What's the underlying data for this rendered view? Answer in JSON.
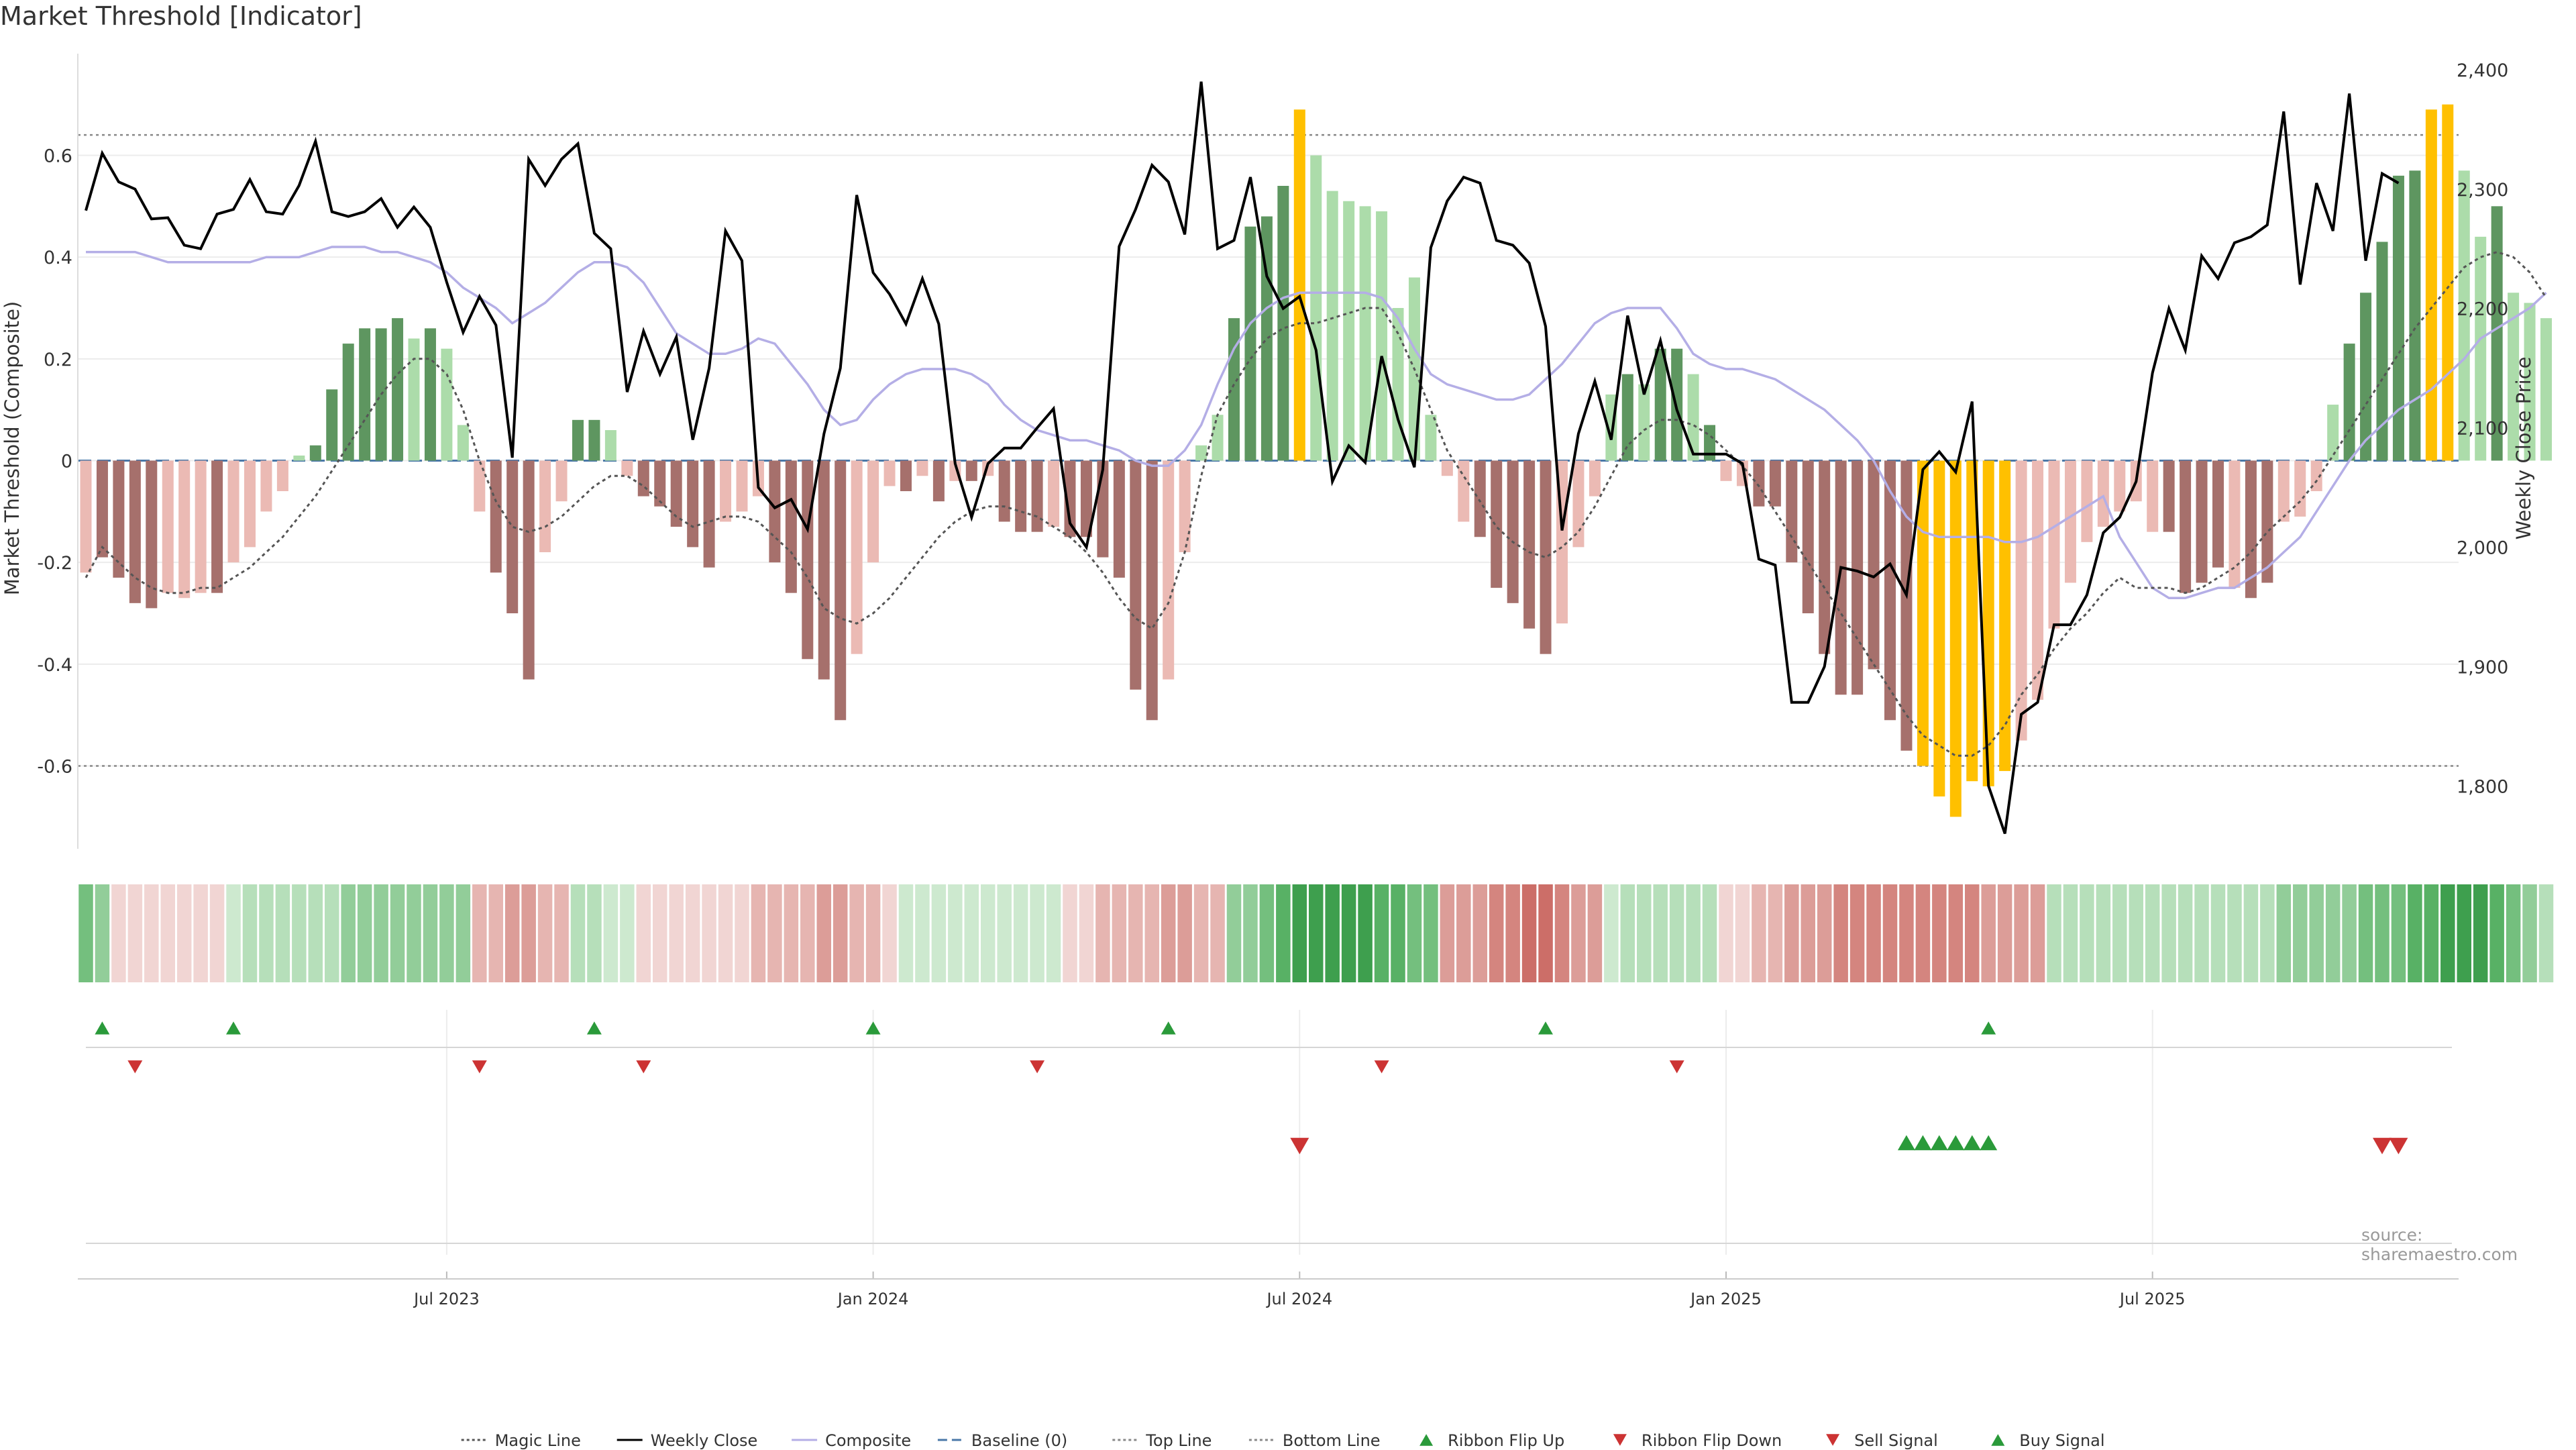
{
  "title": "Market Threshold [Indicator]",
  "source": "source: sharemaestro.com",
  "colors": {
    "magic": "#555555",
    "close": "#000000",
    "composite": "#b4aee6",
    "baseline": "#4a78a8",
    "bear_dark": "#a6706c",
    "bear_light": "#ebbab4",
    "bull_dark": "#5e9660",
    "bull_light": "#acdcaa",
    "extreme": "#ffc000",
    "flip_up": "#2a9a3a",
    "flip_down": "#cc3333"
  },
  "chart_data": {
    "type": "bar",
    "ylabel_left": "Market Threshold (Composite)",
    "ylabel_right": "Weekly Close Price",
    "y_left_ticks": [
      "0.6",
      "0.4",
      "0.2",
      "0",
      "-0.2",
      "-0.4",
      "-0.6"
    ],
    "y_left_range": [
      -0.78,
      0.78
    ],
    "y_right_ticks": [
      "2,400",
      "2,300",
      "2,200",
      "2,100",
      "2,000",
      "1,900",
      "1,800"
    ],
    "y_right_range": [
      1740,
      2405
    ],
    "top_line": 0.64,
    "bottom_line": -0.6,
    "x_ticks": [
      "Jul 2023",
      "Jan 2024",
      "Jul 2024",
      "Jan 2025",
      "Jul 2025"
    ],
    "x_tick_index": [
      22,
      48,
      74,
      100,
      126
    ],
    "bars": [
      -0.22,
      -0.19,
      -0.23,
      -0.28,
      -0.29,
      -0.26,
      -0.27,
      -0.26,
      -0.26,
      -0.2,
      -0.17,
      -0.1,
      -0.06,
      0.01,
      0.03,
      0.14,
      0.23,
      0.26,
      0.26,
      0.28,
      0.24,
      0.26,
      0.22,
      0.07,
      -0.1,
      -0.22,
      -0.3,
      -0.43,
      -0.18,
      -0.08,
      0.08,
      0.08,
      0.06,
      -0.03,
      -0.07,
      -0.09,
      -0.13,
      -0.17,
      -0.21,
      -0.12,
      -0.1,
      -0.07,
      -0.2,
      -0.26,
      -0.39,
      -0.43,
      -0.51,
      -0.38,
      -0.2,
      -0.05,
      -0.06,
      -0.03,
      -0.08,
      -0.04,
      -0.04,
      -0.03,
      -0.12,
      -0.14,
      -0.14,
      -0.13,
      -0.15,
      -0.15,
      -0.19,
      -0.23,
      -0.45,
      -0.51,
      -0.43,
      -0.18,
      0.03,
      0.09,
      0.28,
      0.46,
      0.48,
      0.54,
      0.69,
      0.6,
      0.53,
      0.51,
      0.5,
      0.49,
      0.3,
      0.36,
      0.09,
      -0.03,
      -0.12,
      -0.15,
      -0.25,
      -0.28,
      -0.33,
      -0.38,
      -0.32,
      -0.17,
      -0.07,
      0.13,
      0.17,
      0.15,
      0.22,
      0.22,
      0.17,
      0.07,
      -0.04,
      -0.05,
      -0.09,
      -0.09,
      -0.2,
      -0.3,
      -0.38,
      -0.46,
      -0.46,
      -0.41,
      -0.51,
      -0.57,
      -0.6,
      -0.66,
      -0.7,
      -0.63,
      -0.64,
      -0.61,
      -0.55,
      -0.47,
      -0.33,
      -0.24,
      -0.16,
      -0.13,
      -0.1,
      -0.08,
      -0.14,
      -0.14,
      -0.26,
      -0.24,
      -0.21,
      -0.25,
      -0.27,
      -0.24,
      -0.12,
      -0.11,
      -0.06,
      0.11,
      0.23,
      0.33,
      0.43,
      0.56,
      0.57,
      0.69,
      0.7,
      0.57,
      0.44,
      0.5,
      0.33,
      0.31,
      0.28
    ],
    "bar_class": [
      "bear_light",
      "bear_dark",
      "bear_dark",
      "bear_dark",
      "bear_dark",
      "bear_light",
      "bear_light",
      "bear_light",
      "bear_dark",
      "bear_light",
      "bear_light",
      "bear_light",
      "bear_light",
      "bull_light",
      "bull_dark",
      "bull_dark",
      "bull_dark",
      "bull_dark",
      "bull_dark",
      "bull_dark",
      "bull_light",
      "bull_dark",
      "bull_light",
      "bull_light",
      "bear_light",
      "bear_dark",
      "bear_dark",
      "bear_dark",
      "bear_light",
      "bear_light",
      "bull_dark",
      "bull_dark",
      "bull_light",
      "bear_light",
      "bear_dark",
      "bear_dark",
      "bear_dark",
      "bear_dark",
      "bear_dark",
      "bear_light",
      "bear_light",
      "bear_light",
      "bear_dark",
      "bear_dark",
      "bear_dark",
      "bear_dark",
      "bear_dark",
      "bear_light",
      "bear_light",
      "bear_light",
      "bear_dark",
      "bear_light",
      "bear_dark",
      "bear_light",
      "bear_dark",
      "bear_light",
      "bear_dark",
      "bear_dark",
      "bear_dark",
      "bear_light",
      "bear_dark",
      "bear_dark",
      "bear_dark",
      "bear_dark",
      "bear_dark",
      "bear_dark",
      "bear_light",
      "bear_light",
      "bull_light",
      "bull_light",
      "bull_dark",
      "bull_dark",
      "bull_dark",
      "bull_dark",
      "extreme",
      "bull_light",
      "bull_light",
      "bull_light",
      "bull_light",
      "bull_light",
      "bull_light",
      "bull_light",
      "bull_light",
      "bear_light",
      "bear_light",
      "bear_dark",
      "bear_dark",
      "bear_dark",
      "bear_dark",
      "bear_dark",
      "bear_light",
      "bear_light",
      "bear_light",
      "bull_light",
      "bull_dark",
      "bull_light",
      "bull_dark",
      "bull_dark",
      "bull_light",
      "bull_dark",
      "bear_light",
      "bear_light",
      "bear_dark",
      "bear_dark",
      "bear_dark",
      "bear_dark",
      "bear_dark",
      "bear_dark",
      "bear_dark",
      "bear_dark",
      "bear_dark",
      "bear_dark",
      "extreme",
      "extreme",
      "extreme",
      "extreme",
      "extreme",
      "extreme",
      "bear_light",
      "bear_light",
      "bear_light",
      "bear_light",
      "bear_light",
      "bear_light",
      "bear_light",
      "bear_light",
      "bear_light",
      "bear_dark",
      "bear_dark",
      "bear_dark",
      "bear_dark",
      "bear_light",
      "bear_dark",
      "bear_dark",
      "bear_light",
      "bear_light",
      "bear_light",
      "bull_light",
      "bull_dark",
      "bull_dark",
      "bull_dark",
      "bull_dark",
      "bull_dark",
      "extreme",
      "extreme",
      "bull_light",
      "bull_light",
      "bull_dark",
      "bull_light",
      "bull_light",
      "bull_light"
    ],
    "series": [
      {
        "name": "Weekly Close",
        "values": [
          2282,
          2330,
          2306,
          2300,
          2275,
          2276,
          2253,
          2250,
          2279,
          2283,
          2308,
          2281,
          2279,
          2303,
          2340,
          2281,
          2277,
          2281,
          2292,
          2268,
          2285,
          2268,
          2222,
          2180,
          2210,
          2186,
          2075,
          2325,
          2303,
          2325,
          2338,
          2263,
          2250,
          2130,
          2181,
          2145,
          2176,
          2090,
          2150,
          2265,
          2240,
          2050,
          2033,
          2040,
          2015,
          2095,
          2150,
          2295,
          2230,
          2212,
          2187,
          2225,
          2187,
          2070,
          2025,
          2070,
          2083,
          2083,
          2100,
          2116,
          2020,
          2000,
          2065,
          2252,
          2283,
          2320,
          2306,
          2262,
          2390,
          2250,
          2257,
          2310,
          2227,
          2200,
          2210,
          2165,
          2055,
          2085,
          2071,
          2160,
          2107,
          2067,
          2251,
          2290,
          2310,
          2305,
          2257,
          2253,
          2238,
          2185,
          2014,
          2095,
          2139,
          2090,
          2194,
          2128,
          2173,
          2115,
          2078,
          2078,
          2078,
          2070,
          1990,
          1985,
          1870,
          1870,
          1900,
          1983,
          1980,
          1975,
          1986,
          1960,
          2065,
          2080,
          2063,
          2122,
          1800,
          1760,
          1860,
          1870,
          1935,
          1935,
          1960,
          2012,
          2025,
          2055,
          2146,
          2200,
          2165,
          2244,
          2225,
          2255,
          2260,
          2270,
          2365,
          2220,
          2305,
          2265,
          2380,
          2240,
          2313,
          2305
        ]
      },
      {
        "name": "Composite",
        "values": [
          0.41,
          0.41,
          0.41,
          0.41,
          0.4,
          0.39,
          0.39,
          0.39,
          0.39,
          0.39,
          0.39,
          0.4,
          0.4,
          0.4,
          0.41,
          0.42,
          0.42,
          0.42,
          0.41,
          0.41,
          0.4,
          0.39,
          0.37,
          0.34,
          0.32,
          0.3,
          0.27,
          0.29,
          0.31,
          0.34,
          0.37,
          0.39,
          0.39,
          0.38,
          0.35,
          0.3,
          0.25,
          0.23,
          0.21,
          0.21,
          0.22,
          0.24,
          0.23,
          0.19,
          0.15,
          0.1,
          0.07,
          0.08,
          0.12,
          0.15,
          0.17,
          0.18,
          0.18,
          0.18,
          0.17,
          0.15,
          0.11,
          0.08,
          0.06,
          0.05,
          0.04,
          0.04,
          0.03,
          0.02,
          0.0,
          -0.01,
          -0.01,
          0.02,
          0.07,
          0.15,
          0.22,
          0.27,
          0.3,
          0.32,
          0.33,
          0.33,
          0.33,
          0.33,
          0.33,
          0.32,
          0.28,
          0.22,
          0.17,
          0.15,
          0.14,
          0.13,
          0.12,
          0.12,
          0.13,
          0.16,
          0.19,
          0.23,
          0.27,
          0.29,
          0.3,
          0.3,
          0.3,
          0.26,
          0.21,
          0.19,
          0.18,
          0.18,
          0.17,
          0.16,
          0.14,
          0.12,
          0.1,
          0.07,
          0.04,
          0.0,
          -0.06,
          -0.11,
          -0.14,
          -0.15,
          -0.15,
          -0.15,
          -0.15,
          -0.16,
          -0.16,
          -0.15,
          -0.13,
          -0.11,
          -0.09,
          -0.07,
          -0.15,
          -0.2,
          -0.25,
          -0.27,
          -0.27,
          -0.26,
          -0.25,
          -0.25,
          -0.23,
          -0.21,
          -0.18,
          -0.15,
          -0.1,
          -0.05,
          0.0,
          0.04,
          0.07,
          0.1,
          0.12,
          0.14,
          0.17,
          0.2,
          0.24,
          0.26,
          0.28,
          0.3,
          0.33
        ]
      },
      {
        "name": "Magic Line",
        "values": [
          -0.23,
          -0.17,
          -0.2,
          -0.23,
          -0.25,
          -0.26,
          -0.26,
          -0.25,
          -0.25,
          -0.23,
          -0.21,
          -0.18,
          -0.15,
          -0.11,
          -0.07,
          -0.02,
          0.03,
          0.08,
          0.13,
          0.17,
          0.2,
          0.2,
          0.17,
          0.1,
          0.0,
          -0.08,
          -0.13,
          -0.14,
          -0.13,
          -0.11,
          -0.08,
          -0.05,
          -0.03,
          -0.03,
          -0.05,
          -0.08,
          -0.11,
          -0.13,
          -0.12,
          -0.11,
          -0.11,
          -0.12,
          -0.15,
          -0.18,
          -0.23,
          -0.29,
          -0.31,
          -0.32,
          -0.3,
          -0.27,
          -0.23,
          -0.19,
          -0.15,
          -0.12,
          -0.1,
          -0.09,
          -0.09,
          -0.1,
          -0.11,
          -0.13,
          -0.15,
          -0.18,
          -0.22,
          -0.27,
          -0.31,
          -0.33,
          -0.28,
          -0.18,
          -0.03,
          0.09,
          0.15,
          0.2,
          0.24,
          0.26,
          0.27,
          0.27,
          0.28,
          0.29,
          0.3,
          0.3,
          0.25,
          0.18,
          0.1,
          0.02,
          -0.03,
          -0.08,
          -0.13,
          -0.16,
          -0.18,
          -0.19,
          -0.17,
          -0.14,
          -0.09,
          -0.03,
          0.03,
          0.06,
          0.08,
          0.08,
          0.07,
          0.05,
          0.02,
          -0.01,
          -0.05,
          -0.1,
          -0.15,
          -0.2,
          -0.25,
          -0.3,
          -0.35,
          -0.4,
          -0.45,
          -0.5,
          -0.54,
          -0.56,
          -0.58,
          -0.58,
          -0.56,
          -0.52,
          -0.46,
          -0.42,
          -0.37,
          -0.33,
          -0.3,
          -0.26,
          -0.23,
          -0.25,
          -0.25,
          -0.25,
          -0.26,
          -0.25,
          -0.23,
          -0.21,
          -0.18,
          -0.14,
          -0.11,
          -0.08,
          -0.04,
          0.01,
          0.06,
          0.11,
          0.16,
          0.21,
          0.26,
          0.3,
          0.34,
          0.38,
          0.4,
          0.41,
          0.4,
          0.37,
          0.32
        ]
      }
    ],
    "ribbon": [
      "g4",
      "g3",
      "r1",
      "r1",
      "r1",
      "r1",
      "r1",
      "r1",
      "r1",
      "g1",
      "g2",
      "g2",
      "g2",
      "g2",
      "g2",
      "g2",
      "g3",
      "g3",
      "g3",
      "g3",
      "g3",
      "g3",
      "g3",
      "g3",
      "r2",
      "r2",
      "r3",
      "r3",
      "r2",
      "r2",
      "g2",
      "g2",
      "g1",
      "g1",
      "r1",
      "r1",
      "r1",
      "r1",
      "r1",
      "r1",
      "r1",
      "r2",
      "r2",
      "r2",
      "r2",
      "r3",
      "r3",
      "r2",
      "r2",
      "r1",
      "g1",
      "g1",
      "g1",
      "g1",
      "g1",
      "g1",
      "g1",
      "g1",
      "g1",
      "g1",
      "r1",
      "r1",
      "r2",
      "r2",
      "r2",
      "r2",
      "r3",
      "r3",
      "r2",
      "r2",
      "g3",
      "g3",
      "g4",
      "g5",
      "g6",
      "g6",
      "g6",
      "g6",
      "g6",
      "g5",
      "g5",
      "g4",
      "g4",
      "r3",
      "r3",
      "r3",
      "r4",
      "r4",
      "r5",
      "r5",
      "r4",
      "r3",
      "r3",
      "g1",
      "g2",
      "g2",
      "g2",
      "g2",
      "g2",
      "g2",
      "r1",
      "r1",
      "r2",
      "r2",
      "r3",
      "r3",
      "r3",
      "r4",
      "r4",
      "r4",
      "r4",
      "r4",
      "r4",
      "r4",
      "r4",
      "r4",
      "r3",
      "r3",
      "r3",
      "r3",
      "g2",
      "g2",
      "g2",
      "g2",
      "g2",
      "g2",
      "g2",
      "g2",
      "g2",
      "g2",
      "g2",
      "g2",
      "g2",
      "g2",
      "g3",
      "g3",
      "g3",
      "g3",
      "g3",
      "g4",
      "g4",
      "g4",
      "g5",
      "g5",
      "g6",
      "g6",
      "g6",
      "g5",
      "g4",
      "g3",
      "g2"
    ],
    "flip_up_idx": [
      1,
      9,
      31,
      48,
      66,
      89,
      116
    ],
    "flip_down_idx": [
      3,
      24,
      34,
      58,
      79,
      97
    ],
    "sell_idx": [
      74,
      140,
      141
    ],
    "buy_idx": [
      111,
      112,
      113,
      114,
      115,
      116
    ],
    "legend": [
      {
        "label": "Magic Line",
        "kind": "dotted",
        "color": "#555555"
      },
      {
        "label": "Weekly Close",
        "kind": "solid",
        "color": "#000000"
      },
      {
        "label": "Composite",
        "kind": "solid",
        "color": "#b4aee6"
      },
      {
        "label": "Baseline (0)",
        "kind": "dashed",
        "color": "#4a78a8"
      },
      {
        "label": "Top Line",
        "kind": "dotted",
        "color": "#888888"
      },
      {
        "label": "Bottom Line",
        "kind": "dotted",
        "color": "#888888"
      },
      {
        "label": "Ribbon Flip Up",
        "kind": "up",
        "color": "#2a9a3a"
      },
      {
        "label": "Ribbon Flip Down",
        "kind": "down",
        "color": "#cc3333"
      },
      {
        "label": "Sell Signal",
        "kind": "down",
        "color": "#cc3333"
      },
      {
        "label": "Buy Signal",
        "kind": "up",
        "color": "#2a9a3a"
      }
    ]
  }
}
